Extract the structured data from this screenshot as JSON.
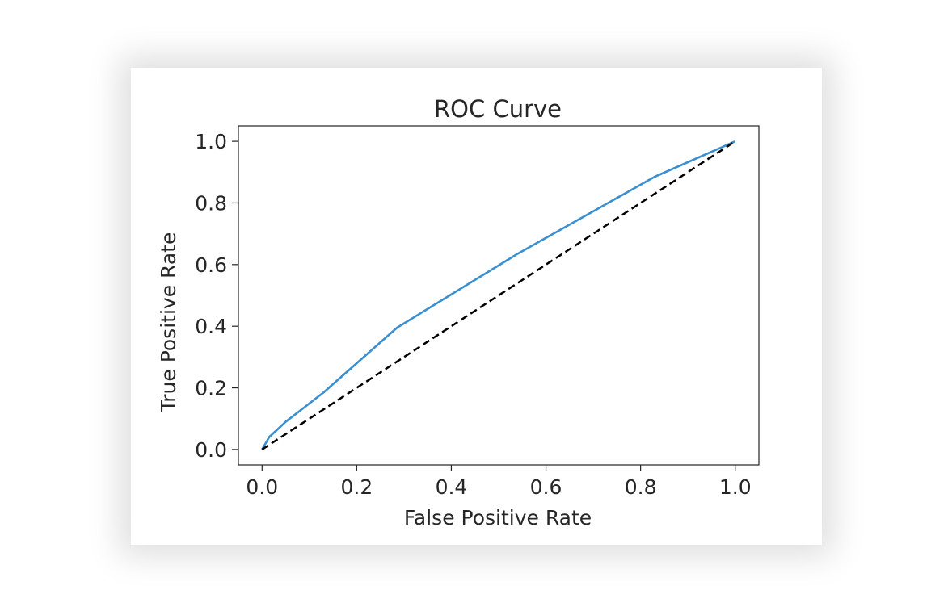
{
  "chart_data": {
    "type": "line",
    "title": "ROC Curve",
    "xlabel": "False Positive Rate",
    "ylabel": "True Positive Rate",
    "xlim": [
      -0.05,
      1.05
    ],
    "ylim": [
      -0.05,
      1.05
    ],
    "xticks": [
      "0.0",
      "0.2",
      "0.4",
      "0.6",
      "0.8",
      "1.0"
    ],
    "yticks": [
      "0.0",
      "0.2",
      "0.4",
      "0.6",
      "0.8",
      "1.0"
    ],
    "grid": false,
    "legend": "none",
    "series": [
      {
        "color": "#3a8fd0",
        "style": "solid",
        "x": [
          0.0,
          0.015,
          0.05,
          0.13,
          0.285,
          0.54,
          0.83,
          1.0
        ],
        "y": [
          0.0,
          0.04,
          0.09,
          0.185,
          0.395,
          0.635,
          0.885,
          1.0
        ]
      },
      {
        "color": "#000000",
        "style": "dashed",
        "x": [
          0.0,
          1.0
        ],
        "y": [
          0.0,
          1.0
        ]
      }
    ]
  }
}
